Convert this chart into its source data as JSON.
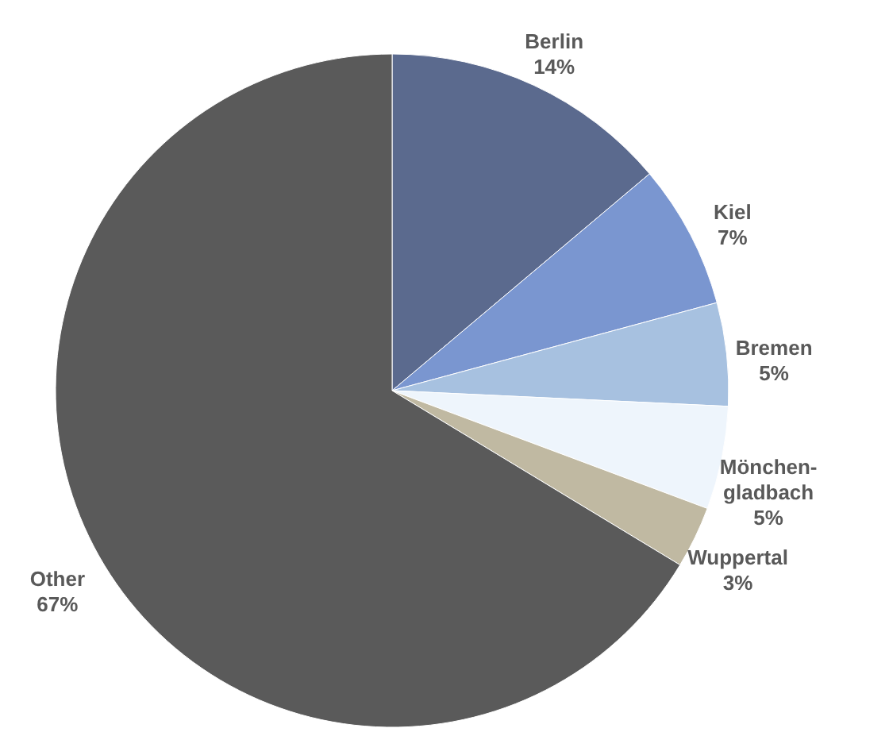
{
  "chart_data": {
    "type": "pie",
    "categories": [
      "Berlin",
      "Kiel",
      "Bremen",
      "Mönchen-gladbach",
      "Wuppertal",
      "Other"
    ],
    "values": [
      14,
      7,
      5,
      5,
      3,
      67
    ],
    "value_labels": [
      "14%",
      "7%",
      "5%",
      "5%",
      "3%",
      "67%"
    ],
    "colors": [
      "#5b6a8e",
      "#7a96d0",
      "#a7c1e0",
      "#eef5fc",
      "#c0b9a2",
      "#5a5a5a"
    ]
  }
}
